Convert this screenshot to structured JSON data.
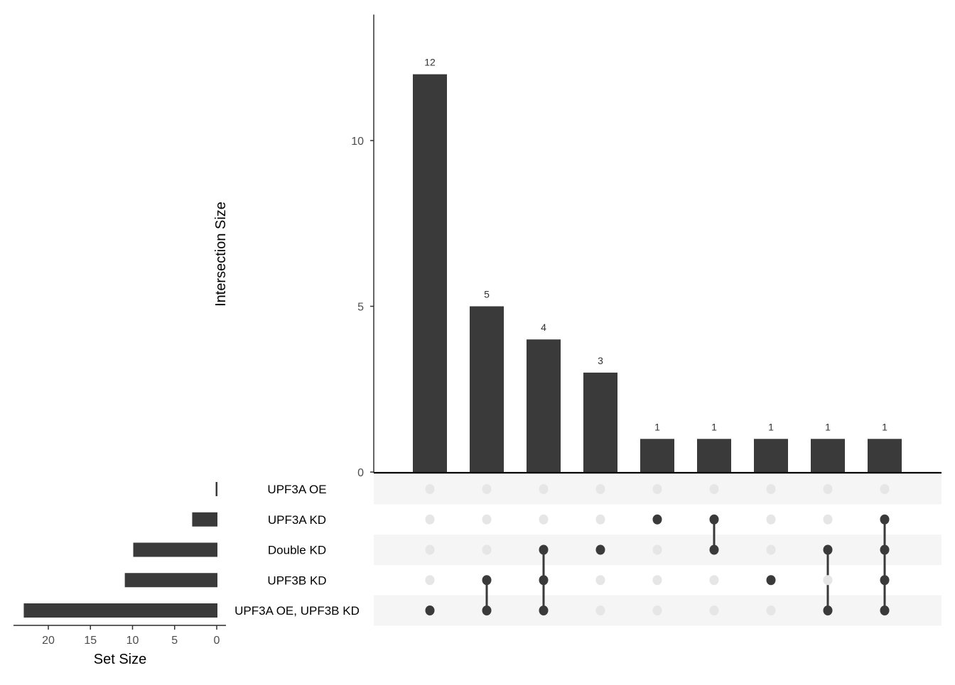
{
  "chart_data": {
    "type": "upset",
    "title": "",
    "colors": {
      "bar": "#3a3a3a",
      "dot_active": "#3a3a3a",
      "dot_inactive": "#e6e6e6",
      "stripe": "#f5f5f5",
      "axis": "#000000",
      "tick_text": "#4d4d4d"
    },
    "intersection_plot": {
      "ylabel": "Intersection Size",
      "ylim": [
        0,
        13.8
      ],
      "yticks": [
        0,
        5,
        10
      ],
      "values": [
        12,
        5,
        4,
        3,
        1,
        1,
        1,
        1,
        1
      ],
      "bar_labels": [
        "12",
        "5",
        "4",
        "3",
        "1",
        "1",
        "1",
        "1",
        "1"
      ]
    },
    "sets": [
      "UPF3A OE",
      "UPF3A KD",
      "Double KD",
      "UPF3B KD",
      "UPF3A OE, UPF3B KD"
    ],
    "set_size_plot": {
      "xlabel": "Set Size",
      "xlim": [
        24,
        0
      ],
      "xticks": [
        20,
        15,
        10,
        5,
        0
      ],
      "values": [
        0.1,
        3,
        10,
        11,
        23
      ]
    },
    "intersections": [
      [
        "UPF3A OE, UPF3B KD"
      ],
      [
        "UPF3B KD",
        "UPF3A OE, UPF3B KD"
      ],
      [
        "Double KD",
        "UPF3B KD",
        "UPF3A OE, UPF3B KD"
      ],
      [
        "Double KD"
      ],
      [
        "UPF3A KD"
      ],
      [
        "UPF3A KD",
        "Double KD"
      ],
      [
        "UPF3B KD"
      ],
      [
        "Double KD",
        "UPF3A OE, UPF3B KD"
      ],
      [
        "UPF3A KD",
        "Double KD",
        "UPF3B KD",
        "UPF3A OE, UPF3B KD"
      ]
    ]
  }
}
